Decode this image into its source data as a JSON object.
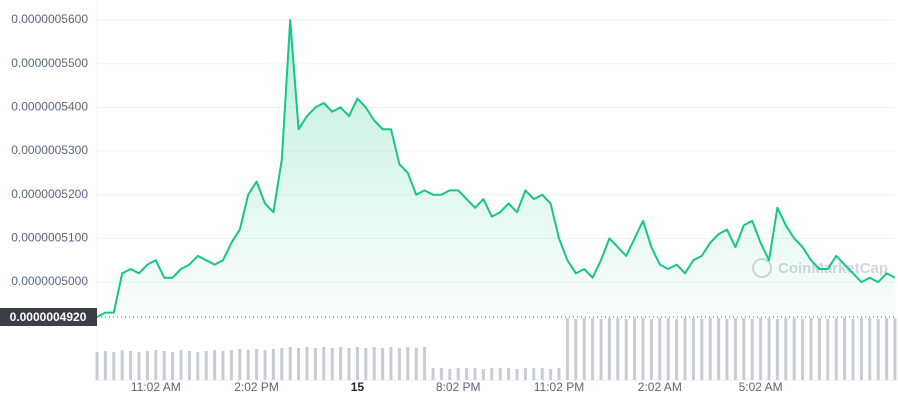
{
  "chart_data": {
    "type": "line",
    "color": "#16c784",
    "grid": true,
    "watermark": "CoinMarketCap",
    "categories": [
      null,
      null,
      null,
      null,
      null,
      null,
      null,
      "11:02 AM",
      null,
      null,
      null,
      null,
      null,
      null,
      null,
      null,
      null,
      null,
      null,
      "2:02 PM",
      null,
      null,
      null,
      null,
      null,
      null,
      null,
      null,
      null,
      null,
      null,
      "15",
      null,
      null,
      null,
      null,
      null,
      null,
      null,
      null,
      null,
      null,
      null,
      "8:02 PM",
      null,
      null,
      null,
      null,
      null,
      null,
      null,
      null,
      null,
      null,
      null,
      "11:02 PM",
      null,
      null,
      null,
      null,
      null,
      null,
      null,
      null,
      null,
      null,
      null,
      "2:02 AM",
      null,
      null,
      null,
      null,
      null,
      null,
      null,
      null,
      null,
      null,
      null,
      "5:02 AM",
      null,
      null,
      null,
      null,
      null,
      null,
      null,
      null,
      null,
      null,
      null,
      null,
      null,
      null,
      null,
      null
    ],
    "values": [
      4.92e-07,
      4.93e-07,
      4.93e-07,
      5.02e-07,
      5.03e-07,
      5.02e-07,
      5.04e-07,
      5.05e-07,
      5.01e-07,
      5.01e-07,
      5.03e-07,
      5.04e-07,
      5.06e-07,
      5.05e-07,
      5.04e-07,
      5.05e-07,
      5.09e-07,
      5.12e-07,
      5.2e-07,
      5.23e-07,
      5.18e-07,
      5.16e-07,
      5.28e-07,
      5.6e-07,
      5.35e-07,
      5.38e-07,
      5.4e-07,
      5.41e-07,
      5.39e-07,
      5.4e-07,
      5.38e-07,
      5.42e-07,
      5.4e-07,
      5.37e-07,
      5.35e-07,
      5.35e-07,
      5.27e-07,
      5.25e-07,
      5.2e-07,
      5.21e-07,
      5.2e-07,
      5.2e-07,
      5.21e-07,
      5.21e-07,
      5.19e-07,
      5.17e-07,
      5.19e-07,
      5.15e-07,
      5.16e-07,
      5.18e-07,
      5.16e-07,
      5.21e-07,
      5.19e-07,
      5.2e-07,
      5.18e-07,
      5.1e-07,
      5.05e-07,
      5.02e-07,
      5.03e-07,
      5.01e-07,
      5.05e-07,
      5.1e-07,
      5.08e-07,
      5.06e-07,
      5.1e-07,
      5.14e-07,
      5.08e-07,
      5.04e-07,
      5.03e-07,
      5.04e-07,
      5.02e-07,
      5.05e-07,
      5.06e-07,
      5.09e-07,
      5.11e-07,
      5.12e-07,
      5.08e-07,
      5.13e-07,
      5.14e-07,
      5.09e-07,
      5.05e-07,
      5.17e-07,
      5.13e-07,
      5.1e-07,
      5.08e-07,
      5.05e-07,
      5.03e-07,
      5.03e-07,
      5.06e-07,
      5.04e-07,
      5.02e-07,
      5e-07,
      5.01e-07,
      5e-07,
      5.02e-07,
      5.01e-07
    ],
    "ylim": [
      4.92e-07,
      5.62e-07
    ],
    "yticks": [
      {
        "value": 5e-07,
        "label": "0.0000005000"
      },
      {
        "value": 5.1e-07,
        "label": "0.0000005100"
      },
      {
        "value": 5.2e-07,
        "label": "0.0000005200"
      },
      {
        "value": 5.3e-07,
        "label": "0.0000005300"
      },
      {
        "value": 5.4e-07,
        "label": "0.0000005400"
      },
      {
        "value": 5.5e-07,
        "label": "0.0000005500"
      },
      {
        "value": 5.6e-07,
        "label": "0.0000005600"
      }
    ],
    "current_price": {
      "value": 4.92e-07,
      "label": "0.0000004920"
    },
    "volume": {
      "color": "#c8ccd4",
      "vlim": [
        0,
        62
      ],
      "values": [
        28,
        29,
        28,
        30,
        29,
        28,
        29,
        30,
        29,
        28,
        30,
        29,
        28,
        29,
        30,
        29,
        30,
        31,
        30,
        31,
        30,
        31,
        32,
        33,
        32,
        33,
        32,
        33,
        32,
        33,
        32,
        33,
        32,
        33,
        32,
        33,
        32,
        33,
        32,
        33,
        12,
        12,
        11,
        12,
        12,
        12,
        11,
        12,
        12,
        12,
        11,
        12,
        12,
        12,
        11,
        12,
        62,
        61,
        62,
        62,
        61,
        62,
        62,
        61,
        62,
        62,
        61,
        62,
        62,
        61,
        62,
        62,
        61,
        62,
        62,
        61,
        62,
        62,
        61,
        62,
        62,
        61,
        62,
        62,
        61,
        62,
        62,
        61,
        62,
        62,
        61,
        62,
        62,
        61,
        62,
        62
      ]
    }
  }
}
